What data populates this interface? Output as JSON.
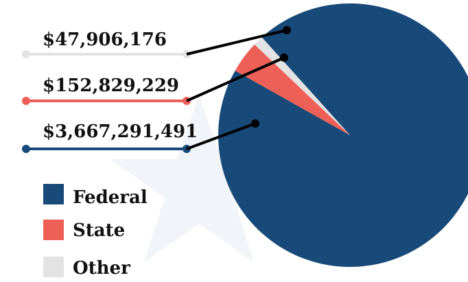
{
  "chart_data": {
    "type": "pie",
    "title": "",
    "slices": [
      {
        "name": "Federal",
        "value": 3667291491,
        "label": "$3,667,291,491",
        "color": "#174a78"
      },
      {
        "name": "State",
        "value": 152829229,
        "label": "$152,829,229",
        "color": "#ee5f57"
      },
      {
        "name": "Other",
        "value": 47906176,
        "label": "$47,906,176",
        "color": "#e3e3e3"
      }
    ],
    "legend": {
      "placement": "bottom-left",
      "items": [
        {
          "label": "Federal",
          "color": "#174a78"
        },
        {
          "label": "State",
          "color": "#ee5f57"
        },
        {
          "label": "Other",
          "color": "#e3e3e3"
        }
      ]
    }
  }
}
